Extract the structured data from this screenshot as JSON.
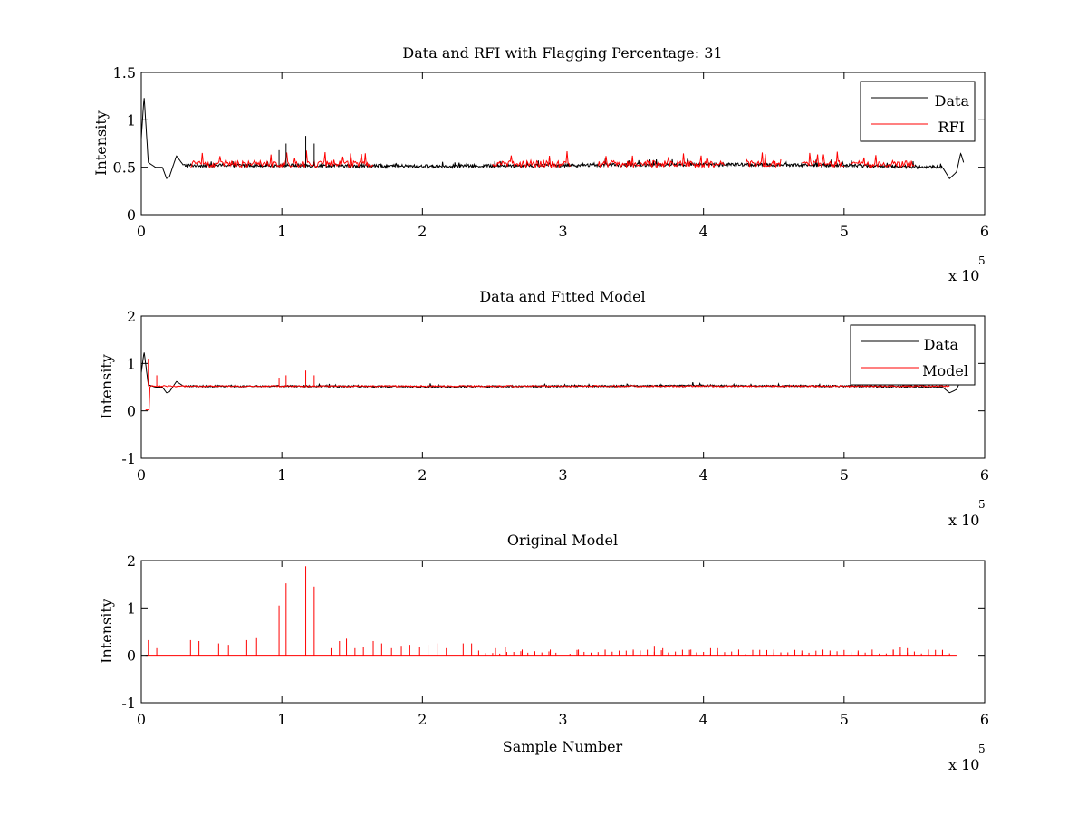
{
  "figure": {
    "background": "#ffffff",
    "data_color": "#000000",
    "rfi_color": "#ff0000"
  },
  "chart_data": [
    {
      "type": "line",
      "title": "Data and RFI with Flagging Percentage: 31",
      "xlabel": "",
      "ylabel": "Intensity",
      "xlim": [
        0,
        600000
      ],
      "ylim": [
        0,
        1.5
      ],
      "xticks": [
        0,
        1,
        2,
        3,
        4,
        5,
        6
      ],
      "yticks": [
        0,
        0.5,
        1,
        1.5
      ],
      "x_multiplier": "x 10",
      "x_exponent": "5",
      "legend": {
        "position": "top-right",
        "entries": [
          "Data",
          "RFI"
        ]
      },
      "series": [
        {
          "name": "Data",
          "color": "#000000",
          "x": [
            0,
            2000,
            5000,
            10000,
            15000,
            18000,
            20000,
            25000,
            30000,
            100000,
            200000,
            300000,
            400000,
            500000,
            570000,
            575000,
            580000,
            583000,
            585000
          ],
          "y": [
            0.8,
            1.25,
            0.55,
            0.5,
            0.5,
            0.38,
            0.4,
            0.62,
            0.52,
            0.52,
            0.51,
            0.52,
            0.53,
            0.52,
            0.5,
            0.38,
            0.45,
            0.65,
            0.55
          ]
        },
        {
          "name": "RFI",
          "color": "#ff0000",
          "x_ranges": [
            [
              35000,
              165000
            ],
            [
              250000,
              305000
            ],
            [
              325000,
              415000
            ],
            [
              430000,
              455000
            ],
            [
              470000,
              500000
            ],
            [
              505000,
              550000
            ]
          ]
        }
      ],
      "spikes": [
        {
          "x": 98000,
          "y": 0.68
        },
        {
          "x": 103000,
          "y": 0.75
        },
        {
          "x": 117000,
          "y": 0.83
        },
        {
          "x": 123000,
          "y": 0.75
        }
      ]
    },
    {
      "type": "line",
      "title": "Data and Fitted Model",
      "xlabel": "",
      "ylabel": "Intensity",
      "xlim": [
        0,
        600000
      ],
      "ylim": [
        -1,
        2
      ],
      "xticks": [
        0,
        1,
        2,
        3,
        4,
        5,
        6
      ],
      "yticks": [
        -1,
        0,
        1,
        2
      ],
      "x_multiplier": "x 10",
      "x_exponent": "5",
      "legend": {
        "position": "top-right",
        "entries": [
          "Data",
          "Model"
        ]
      },
      "series": [
        {
          "name": "Data",
          "color": "#000000"
        },
        {
          "name": "Model",
          "color": "#ff0000"
        }
      ],
      "model_spikes": [
        {
          "x": 5000,
          "y": 1.1
        },
        {
          "x": 11000,
          "y": 0.75
        },
        {
          "x": 98000,
          "y": 0.7
        },
        {
          "x": 103000,
          "y": 0.75
        },
        {
          "x": 117000,
          "y": 0.85
        },
        {
          "x": 123000,
          "y": 0.75
        }
      ]
    },
    {
      "type": "line",
      "title": "Original Model",
      "xlabel": "Sample Number",
      "ylabel": "Intensity",
      "xlim": [
        0,
        600000
      ],
      "ylim": [
        -1,
        2
      ],
      "xticks": [
        0,
        1,
        2,
        3,
        4,
        5,
        6
      ],
      "yticks": [
        -1,
        0,
        1,
        2
      ],
      "x_multiplier": "x 10",
      "x_exponent": "5",
      "series": [
        {
          "name": "Model",
          "color": "#ff0000"
        }
      ],
      "spikes": [
        {
          "x": 5000,
          "y": 0.32
        },
        {
          "x": 11000,
          "y": 0.15
        },
        {
          "x": 35000,
          "y": 0.32
        },
        {
          "x": 41000,
          "y": 0.3
        },
        {
          "x": 55000,
          "y": 0.25
        },
        {
          "x": 62000,
          "y": 0.22
        },
        {
          "x": 75000,
          "y": 0.32
        },
        {
          "x": 82000,
          "y": 0.38
        },
        {
          "x": 98000,
          "y": 1.05
        },
        {
          "x": 103000,
          "y": 1.52
        },
        {
          "x": 117000,
          "y": 1.88
        },
        {
          "x": 123000,
          "y": 1.45
        },
        {
          "x": 135000,
          "y": 0.15
        },
        {
          "x": 141000,
          "y": 0.3
        },
        {
          "x": 146000,
          "y": 0.35
        },
        {
          "x": 152000,
          "y": 0.15
        },
        {
          "x": 158000,
          "y": 0.18
        },
        {
          "x": 165000,
          "y": 0.3
        },
        {
          "x": 171000,
          "y": 0.25
        },
        {
          "x": 178000,
          "y": 0.15
        },
        {
          "x": 185000,
          "y": 0.2
        },
        {
          "x": 191000,
          "y": 0.22
        },
        {
          "x": 198000,
          "y": 0.18
        },
        {
          "x": 204000,
          "y": 0.22
        },
        {
          "x": 211000,
          "y": 0.25
        },
        {
          "x": 217000,
          "y": 0.15
        },
        {
          "x": 229000,
          "y": 0.25
        },
        {
          "x": 235000,
          "y": 0.25
        },
        {
          "x": 252000,
          "y": 0.15
        },
        {
          "x": 259000,
          "y": 0.18
        },
        {
          "x": 271000,
          "y": 0.12
        },
        {
          "x": 291000,
          "y": 0.12
        },
        {
          "x": 311000,
          "y": 0.12
        },
        {
          "x": 330000,
          "y": 0.12
        },
        {
          "x": 350000,
          "y": 0.12
        },
        {
          "x": 365000,
          "y": 0.2
        },
        {
          "x": 371000,
          "y": 0.15
        },
        {
          "x": 391000,
          "y": 0.12
        },
        {
          "x": 405000,
          "y": 0.15
        },
        {
          "x": 410000,
          "y": 0.15
        },
        {
          "x": 425000,
          "y": 0.12
        },
        {
          "x": 450000,
          "y": 0.12
        },
        {
          "x": 470000,
          "y": 0.1
        },
        {
          "x": 490000,
          "y": 0.1
        },
        {
          "x": 510000,
          "y": 0.1
        },
        {
          "x": 520000,
          "y": 0.12
        },
        {
          "x": 535000,
          "y": 0.12
        },
        {
          "x": 540000,
          "y": 0.18
        },
        {
          "x": 545000,
          "y": 0.15
        },
        {
          "x": 560000,
          "y": 0.12
        },
        {
          "x": 570000,
          "y": 0.1
        }
      ]
    }
  ]
}
